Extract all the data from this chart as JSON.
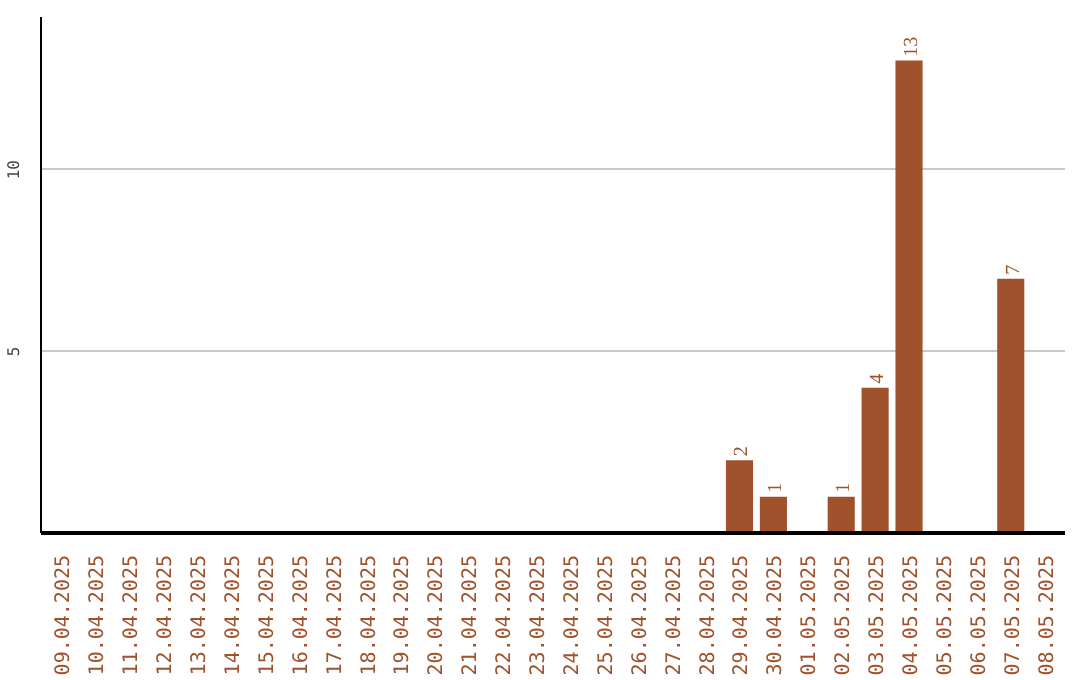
{
  "chart_data": {
    "type": "bar",
    "categories": [
      "09.04.2025",
      "10.04.2025",
      "11.04.2025",
      "12.04.2025",
      "13.04.2025",
      "14.04.2025",
      "15.04.2025",
      "16.04.2025",
      "17.04.2025",
      "18.04.2025",
      "19.04.2025",
      "20.04.2025",
      "21.04.2025",
      "22.04.2025",
      "23.04.2025",
      "24.04.2025",
      "25.04.2025",
      "26.04.2025",
      "27.04.2025",
      "28.04.2025",
      "29.04.2025",
      "30.04.2025",
      "01.05.2025",
      "02.05.2025",
      "03.05.2025",
      "04.05.2025",
      "05.05.2025",
      "06.05.2025",
      "07.05.2025",
      "08.05.2025"
    ],
    "values": [
      0,
      0,
      0,
      0,
      0,
      0,
      0,
      0,
      0,
      0,
      0,
      0,
      0,
      0,
      0,
      0,
      0,
      0,
      0,
      0,
      2,
      1,
      0,
      1,
      4,
      13,
      0,
      0,
      7,
      0
    ],
    "value_labels": [
      null,
      null,
      null,
      null,
      null,
      null,
      null,
      null,
      null,
      null,
      null,
      null,
      null,
      null,
      null,
      null,
      null,
      null,
      null,
      null,
      "2",
      "1",
      null,
      "1",
      "4",
      "13",
      null,
      null,
      "7",
      null
    ],
    "color": "#a0522d",
    "ylim": [
      0,
      14.2
    ],
    "yticks": [
      5,
      10
    ],
    "grid": "y"
  }
}
